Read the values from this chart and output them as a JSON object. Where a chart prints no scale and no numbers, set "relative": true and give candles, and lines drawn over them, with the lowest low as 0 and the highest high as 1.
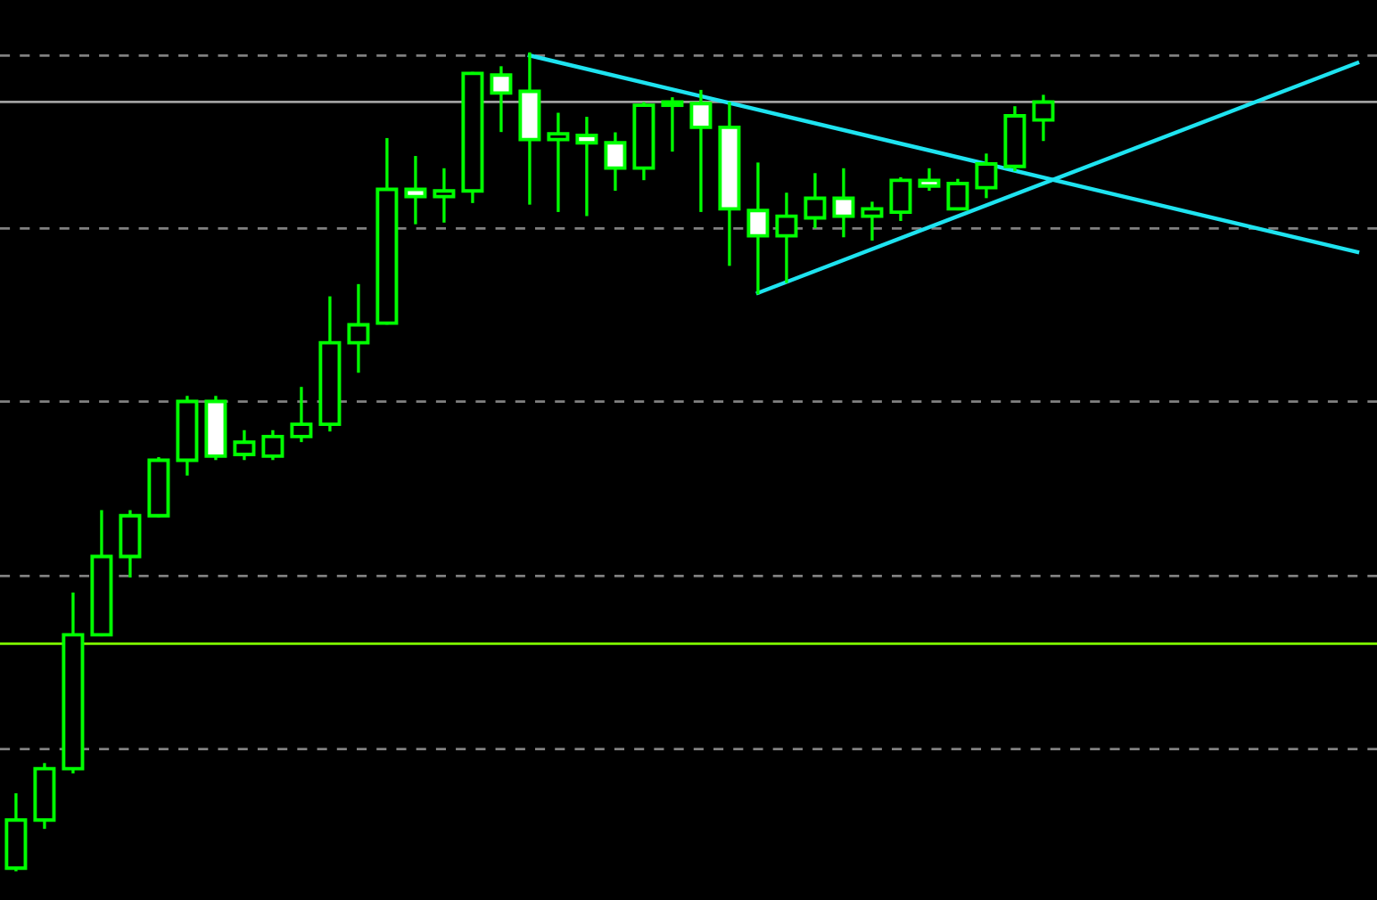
{
  "chart_data": {
    "type": "candlestick",
    "relative": true,
    "categories": [
      null,
      null,
      null,
      null,
      null,
      null,
      null,
      null,
      null,
      null,
      null,
      null,
      null,
      null,
      null,
      null,
      null,
      null,
      null,
      null,
      null,
      null,
      null,
      null,
      null,
      null,
      null,
      null,
      null,
      null,
      null,
      null,
      null,
      null,
      null,
      null,
      null,
      null,
      null,
      null,
      null,
      null,
      null,
      null,
      null,
      null,
      null,
      null
    ],
    "series": [
      {
        "type": "candlestick",
        "color": "#00ff00",
        "colors": [
          "#000000",
          "#000000",
          "#000000",
          "#000000",
          "#000000",
          "#000000",
          "#000000",
          "#ffffff",
          "#000000",
          "#000000",
          "#000000",
          "#000000",
          "#000000",
          "#000000",
          "#ffffff",
          "#000000",
          "#000000",
          "#ffffff",
          "#ffffff",
          "#000000",
          "#ffffff",
          "#ffffff",
          "#000000",
          "#000000",
          "#ffffff",
          "#ffffff",
          "#ffffff",
          "#000000",
          "#000000",
          "#ffffff",
          "#000000",
          "#000000",
          "#ffffff",
          "#000000",
          "#000000",
          "#000000",
          "#000000",
          null,
          null,
          null,
          null,
          null,
          null,
          null,
          null,
          null,
          null,
          null
        ],
        "ohlc": [
          [
            0.002,
            0.092,
            0,
            0.061
          ],
          [
            0.061,
            0.129,
            0.052,
            0.124
          ],
          [
            0.124,
            0.338,
            0.12,
            0.288
          ],
          [
            0.288,
            0.439,
            0.288,
            0.384
          ],
          [
            0.384,
            0.439,
            0.36,
            0.434
          ],
          [
            0.434,
            0.504,
            0.434,
            0.502
          ],
          [
            0.502,
            0.579,
            0.485,
            0.574
          ],
          [
            0.574,
            0.579,
            0.504,
            0.507
          ],
          [
            0.509,
            0.537,
            0.504,
            0.524
          ],
          [
            0.507,
            0.537,
            0.504,
            0.531
          ],
          [
            0.531,
            0.59,
            0.526,
            0.546
          ],
          [
            0.546,
            0.701,
            0.539,
            0.646
          ],
          [
            0.646,
            0.716,
            0.611,
            0.668
          ],
          [
            0.67,
            0.895,
            0.67,
            0.834
          ],
          [
            0.834,
            0.873,
            0.793,
            0.825
          ],
          [
            0.825,
            0.858,
            0.795,
            0.832
          ],
          [
            0.832,
            0.976,
            0.819,
            0.976
          ],
          [
            0.974,
            0.983,
            0.906,
            0.952
          ],
          [
            0.954,
            1,
            0.817,
            0.895
          ],
          [
            0.895,
            0.926,
            0.808,
            0.902
          ],
          [
            0.9,
            0.921,
            0.803,
            0.891
          ],
          [
            0.891,
            0.902,
            0.834,
            0.86
          ],
          [
            0.86,
            0.939,
            0.847,
            0.937
          ],
          [
            0.937,
            0.945,
            0.882,
            0.941
          ],
          [
            0.939,
            0.954,
            0.808,
            0.91
          ],
          [
            0.91,
            0.939,
            0.742,
            0.81
          ],
          [
            0.808,
            0.865,
            0.707,
            0.777
          ],
          [
            0.777,
            0.828,
            0.721,
            0.801
          ],
          [
            0.799,
            0.852,
            0.788,
            0.823
          ],
          [
            0.823,
            0.858,
            0.777,
            0.801
          ],
          [
            0.801,
            0.817,
            0.773,
            0.81
          ],
          [
            0.806,
            0.847,
            0.797,
            0.845
          ],
          [
            0.845,
            0.858,
            0.834,
            0.838
          ],
          [
            0.81,
            0.845,
            0.81,
            0.841
          ],
          [
            0.836,
            0.876,
            0.825,
            0.865
          ],
          [
            0.862,
            0.934,
            0.858,
            0.924
          ],
          [
            0.919,
            0.948,
            0.895,
            0.941
          ],
          null,
          null,
          null,
          null,
          null,
          null,
          null,
          null,
          null,
          null,
          null
        ]
      },
      {
        "type": "line",
        "color": "#1ee3f0",
        "values": [
          null,
          null,
          null,
          null,
          null,
          null,
          null,
          null,
          null,
          null,
          null,
          null,
          null,
          null,
          null,
          null,
          null,
          null,
          0.998,
          null,
          null,
          null,
          null,
          null,
          null,
          null,
          null,
          null,
          null,
          null,
          null,
          null,
          null,
          null,
          null,
          null,
          null,
          null,
          null,
          null,
          null,
          null,
          null,
          null,
          null,
          null,
          null,
          0.757
        ]
      },
      {
        "type": "line",
        "color": "#1ee3f0",
        "values": [
          null,
          null,
          null,
          null,
          null,
          null,
          null,
          null,
          null,
          null,
          null,
          null,
          null,
          null,
          null,
          null,
          null,
          null,
          null,
          null,
          null,
          null,
          null,
          null,
          null,
          null,
          0.707,
          null,
          null,
          null,
          null,
          null,
          null,
          null,
          null,
          null,
          null,
          null,
          null,
          null,
          null,
          null,
          null,
          null,
          null,
          null,
          null,
          0.989
        ]
      }
    ],
    "ref_lines": [
      {
        "axis": "y",
        "value": 0.998,
        "color": "#808080",
        "line_style": "dashed"
      },
      {
        "axis": "y",
        "value": 0.941,
        "color": "#a0a0a0",
        "line_style": "solid"
      },
      {
        "axis": "y",
        "value": 0.786,
        "color": "#808080",
        "line_style": "dashed"
      },
      {
        "axis": "y",
        "value": 0.574,
        "color": "#808080",
        "line_style": "dashed"
      },
      {
        "axis": "y",
        "value": 0.36,
        "color": "#808080",
        "line_style": "dashed"
      },
      {
        "axis": "y",
        "value": 0.277,
        "color": "#7fff00",
        "line_style": "solid"
      },
      {
        "axis": "y",
        "value": 0.148,
        "color": "#808080",
        "line_style": "dashed"
      }
    ],
    "legend": false
  }
}
